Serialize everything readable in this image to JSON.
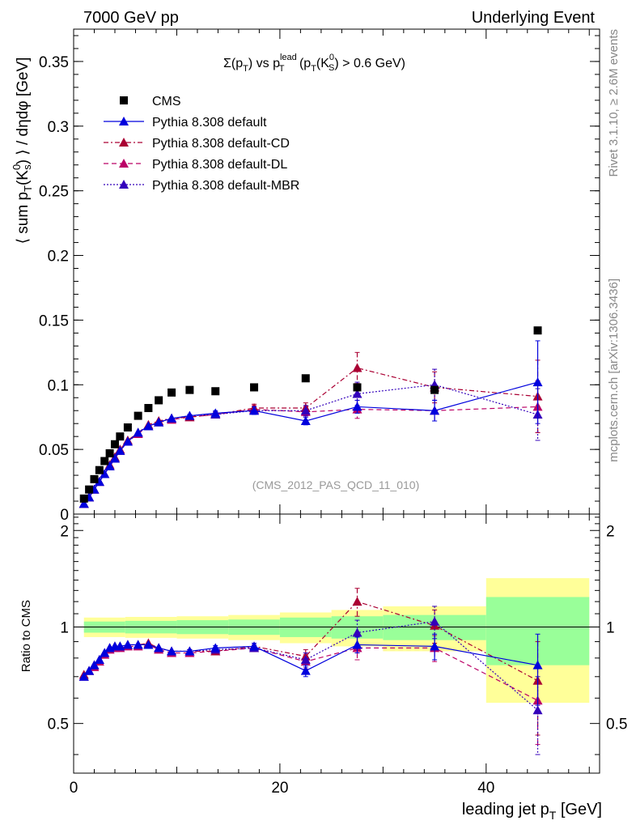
{
  "header": {
    "left": "7000 GeV pp",
    "right": "Underlying Event"
  },
  "side_text": {
    "rivet": "Rivet 3.1.10, ≥ 2.6M events",
    "mcplots": "mcplots.cern.ch [arXiv:1306.3436]"
  },
  "analysis_ref": "(CMS_2012_PAS_QCD_11_010)",
  "colors": {
    "cms": "#000000",
    "default": "#0000dd",
    "cd": "#aa0033",
    "dl": "#bb0066",
    "mbr": "#3300bb",
    "band_inner": "#99ff99",
    "band_outer": "#ffff99"
  },
  "chart_data": [
    {
      "type": "scatter",
      "panel": "main",
      "title_parts": {
        "a": "Σ(p",
        "b": "T",
        "c": ") vs p",
        "d": "lead",
        "e": "T",
        "f": " (p",
        "g": "T",
        "h": "(K",
        "i": "0",
        "j": "S",
        "k": ") > 0.6 GeV)"
      },
      "ylabel_parts": {
        "a": "⟨ sum p",
        "b": "T",
        "c": "(K",
        "d": "0",
        "e": "s",
        "f": ") ⟩ / dηdφ [GeV]"
      },
      "xlim": [
        0,
        51
      ],
      "ylim": [
        0,
        0.375
      ],
      "yticks": [
        0,
        0.05,
        0.1,
        0.15,
        0.2,
        0.25,
        0.3,
        0.35
      ],
      "ytick_labels": [
        "0",
        "0.05",
        "0.1",
        "0.15",
        "0.2",
        "0.25",
        "0.3",
        "0.35"
      ],
      "legend_position": "top-left",
      "x": [
        1,
        1.5,
        2,
        2.5,
        3,
        3.5,
        4,
        4.5,
        5.25,
        6.25,
        7.25,
        8.25,
        9.5,
        11.25,
        13.75,
        17.5,
        22.5,
        27.5,
        35,
        45
      ],
      "series": [
        {
          "key": "cms",
          "name": "CMS",
          "values": [
            0.012,
            0.019,
            0.027,
            0.034,
            0.041,
            0.047,
            0.054,
            0.06,
            0.067,
            0.076,
            0.082,
            0.088,
            0.094,
            0.096,
            0.095,
            0.098,
            0.105,
            0.098,
            0.096,
            0.142
          ],
          "errors": [
            0,
            0,
            0,
            0,
            0,
            0,
            0,
            0,
            0,
            0,
            0,
            0,
            0,
            0,
            0,
            0,
            0,
            0,
            0,
            0
          ]
        },
        {
          "key": "default",
          "name": "Pythia 8.308 default",
          "values": [
            0.008,
            0.013,
            0.019,
            0.025,
            0.031,
            0.037,
            0.043,
            0.049,
            0.056,
            0.063,
            0.068,
            0.071,
            0.074,
            0.076,
            0.078,
            0.08,
            0.072,
            0.083,
            0.08,
            0.102
          ],
          "errors": [
            0,
            0,
            0,
            0,
            0,
            0,
            0,
            0,
            0,
            0,
            0,
            0,
            0,
            0.001,
            0.002,
            0.003,
            0.003,
            0.005,
            0.008,
            0.032
          ]
        },
        {
          "key": "cd",
          "name": "Pythia 8.308 default-CD",
          "values": [
            0.008,
            0.013,
            0.019,
            0.025,
            0.031,
            0.038,
            0.044,
            0.05,
            0.057,
            0.063,
            0.069,
            0.072,
            0.074,
            0.075,
            0.077,
            0.082,
            0.082,
            0.113,
            0.098,
            0.091
          ],
          "errors": [
            0,
            0,
            0,
            0,
            0,
            0,
            0,
            0,
            0,
            0,
            0,
            0,
            0,
            0.001,
            0.002,
            0.003,
            0.004,
            0.012,
            0.012,
            0.028
          ]
        },
        {
          "key": "dl",
          "name": "Pythia 8.308 default-DL",
          "values": [
            0.008,
            0.013,
            0.019,
            0.025,
            0.031,
            0.037,
            0.043,
            0.049,
            0.056,
            0.062,
            0.068,
            0.071,
            0.073,
            0.075,
            0.077,
            0.081,
            0.079,
            0.081,
            0.08,
            0.083
          ],
          "errors": [
            0,
            0,
            0,
            0,
            0,
            0,
            0,
            0,
            0,
            0,
            0,
            0,
            0,
            0.001,
            0.002,
            0.003,
            0.004,
            0.007,
            0.008,
            0.02
          ]
        },
        {
          "key": "mbr",
          "name": "Pythia 8.308 default-MBR",
          "values": [
            0.008,
            0.013,
            0.019,
            0.025,
            0.031,
            0.037,
            0.043,
            0.049,
            0.056,
            0.063,
            0.068,
            0.071,
            0.074,
            0.076,
            0.077,
            0.08,
            0.08,
            0.093,
            0.1,
            0.077
          ],
          "errors": [
            0,
            0,
            0,
            0,
            0,
            0,
            0,
            0,
            0,
            0,
            0,
            0,
            0,
            0.001,
            0.002,
            0.003,
            0.004,
            0.009,
            0.012,
            0.02
          ]
        }
      ]
    },
    {
      "type": "scatter",
      "panel": "ratio",
      "ylabel": "Ratio to CMS",
      "xlabel_parts": {
        "a": "leading jet p",
        "b": "T",
        "c": " [GeV]"
      },
      "xlim": [
        0,
        51
      ],
      "ylim": [
        0.35,
        2.25
      ],
      "yticks": [
        0.5,
        1,
        2
      ],
      "ytick_labels": [
        "0.5",
        "1",
        "2"
      ],
      "xticks": [
        0,
        20,
        40
      ],
      "xtick_labels": [
        "0",
        "20",
        "40"
      ],
      "bands": [
        {
          "x0": 1,
          "x1": 5,
          "inner": 0.04,
          "outer": 0.07
        },
        {
          "x0": 5,
          "x1": 10,
          "inner": 0.045,
          "outer": 0.075
        },
        {
          "x0": 10,
          "x1": 15,
          "inner": 0.05,
          "outer": 0.08
        },
        {
          "x0": 15,
          "x1": 20,
          "inner": 0.055,
          "outer": 0.09
        },
        {
          "x0": 20,
          "x1": 25,
          "inner": 0.07,
          "outer": 0.11
        },
        {
          "x0": 25,
          "x1": 30,
          "inner": 0.08,
          "outer": 0.13
        },
        {
          "x0": 30,
          "x1": 40,
          "inner": 0.09,
          "outer": 0.16
        },
        {
          "x0": 40,
          "x1": 50,
          "inner": 0.24,
          "outer": 0.42
        }
      ],
      "x": [
        1,
        1.5,
        2,
        2.5,
        3,
        3.5,
        4,
        4.5,
        5.25,
        6.25,
        7.25,
        8.25,
        9.5,
        11.25,
        13.75,
        17.5,
        22.5,
        27.5,
        35,
        45
      ],
      "series": [
        {
          "key": "default",
          "name": "Pythia 8.308 default",
          "values": [
            0.7,
            0.73,
            0.76,
            0.79,
            0.83,
            0.86,
            0.87,
            0.87,
            0.88,
            0.88,
            0.88,
            0.86,
            0.84,
            0.84,
            0.86,
            0.87,
            0.73,
            0.88,
            0.87,
            0.76
          ],
          "errors": [
            0,
            0,
            0,
            0,
            0,
            0,
            0,
            0,
            0,
            0,
            0,
            0,
            0,
            0.01,
            0.015,
            0.02,
            0.03,
            0.05,
            0.08,
            0.19
          ]
        },
        {
          "key": "cd",
          "name": "Pythia 8.308 default-CD",
          "values": [
            0.71,
            0.73,
            0.76,
            0.79,
            0.83,
            0.86,
            0.87,
            0.87,
            0.88,
            0.88,
            0.89,
            0.86,
            0.84,
            0.84,
            0.84,
            0.87,
            0.81,
            1.2,
            1.01,
            0.68
          ],
          "errors": [
            0,
            0,
            0,
            0,
            0,
            0,
            0,
            0,
            0,
            0,
            0,
            0,
            0,
            0.01,
            0.015,
            0.02,
            0.04,
            0.12,
            0.12,
            0.22
          ]
        },
        {
          "key": "dl",
          "name": "Pythia 8.308 default-DL",
          "values": [
            0.7,
            0.73,
            0.75,
            0.78,
            0.82,
            0.85,
            0.86,
            0.86,
            0.87,
            0.87,
            0.88,
            0.85,
            0.83,
            0.83,
            0.84,
            0.86,
            0.78,
            0.86,
            0.86,
            0.59
          ],
          "errors": [
            0,
            0,
            0,
            0,
            0,
            0,
            0,
            0,
            0,
            0,
            0,
            0,
            0,
            0.01,
            0.015,
            0.02,
            0.04,
            0.07,
            0.08,
            0.16
          ]
        },
        {
          "key": "mbr",
          "name": "Pythia 8.308 default-MBR",
          "values": [
            0.7,
            0.73,
            0.76,
            0.79,
            0.83,
            0.86,
            0.87,
            0.87,
            0.88,
            0.88,
            0.88,
            0.86,
            0.84,
            0.84,
            0.85,
            0.86,
            0.79,
            0.96,
            1.04,
            0.55
          ],
          "errors": [
            0,
            0,
            0,
            0,
            0,
            0,
            0,
            0,
            0,
            0,
            0,
            0,
            0,
            0.01,
            0.015,
            0.02,
            0.04,
            0.09,
            0.12,
            0.15
          ]
        }
      ]
    }
  ]
}
